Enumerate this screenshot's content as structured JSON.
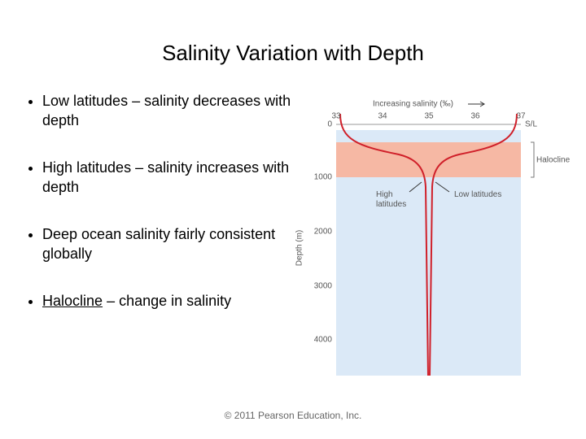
{
  "title": "Salinity Variation with Depth",
  "bullets": [
    "Low latitudes – salinity decreases with depth",
    "High latitudes – salinity increases with depth",
    "Deep ocean salinity fairly consistent globally",
    {
      "term": "Halocline",
      "rest": "– change in salinity"
    }
  ],
  "figure": {
    "axis_title": "Increasing salinity (‰)",
    "x_ticks": [
      "33",
      "34",
      "35",
      "36",
      "37"
    ],
    "y_ticks": [
      "0",
      "1000",
      "2000",
      "3000",
      "4000"
    ],
    "y_label": "Depth (m)",
    "surface_label": "S/L",
    "halocline_label": "Halocline",
    "high_label": "High latitudes",
    "low_label": "Low latitudes"
  },
  "footer": "© 2011 Pearson Education, Inc."
}
